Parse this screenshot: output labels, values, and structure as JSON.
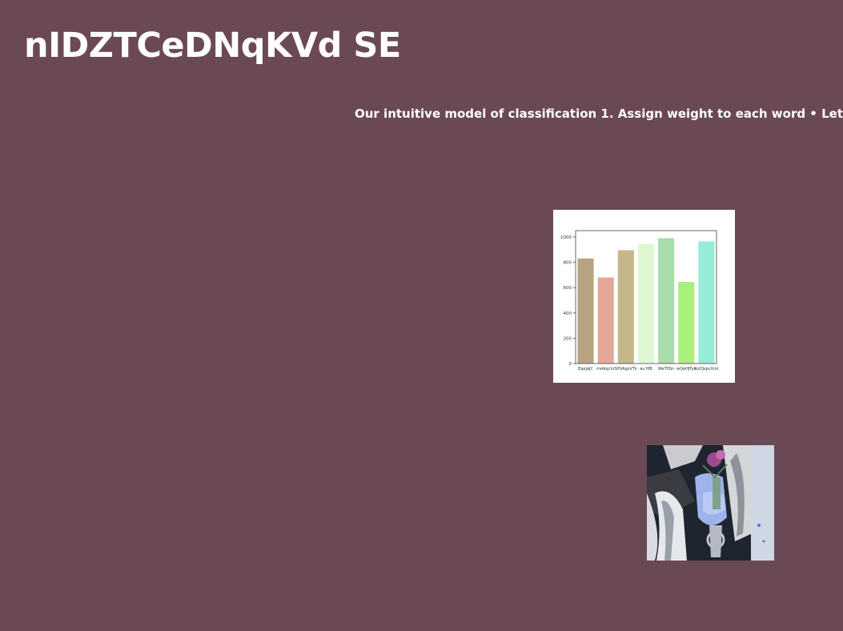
{
  "page": {
    "title": "nIDZTCeDNqKVd SE",
    "subtitle": "Our intuitive model of classification 1. Assign weight to each word • Let"
  },
  "chart_data": {
    "type": "bar",
    "categories": [
      "EqeJeJC",
      "mdAqcVc",
      "SPVAgsVTk",
      "eu MB",
      "WeTfiSn",
      "wQeHJFyL",
      "AzOJspcXmI"
    ],
    "values": [
      830,
      680,
      895,
      945,
      990,
      645,
      965
    ],
    "colors": [
      "#b8a482",
      "#e3a898",
      "#c4b88a",
      "#dff8d4",
      "#a8dcaa",
      "#aaee7c",
      "#96ecd8"
    ],
    "yticks": [
      0,
      200,
      400,
      600,
      800,
      1000
    ],
    "ylim": [
      0,
      1050
    ],
    "title": "",
    "xlabel": "",
    "ylabel": "",
    "grid": false
  },
  "photo": {
    "icon": "photo-sculpture-flowers"
  }
}
